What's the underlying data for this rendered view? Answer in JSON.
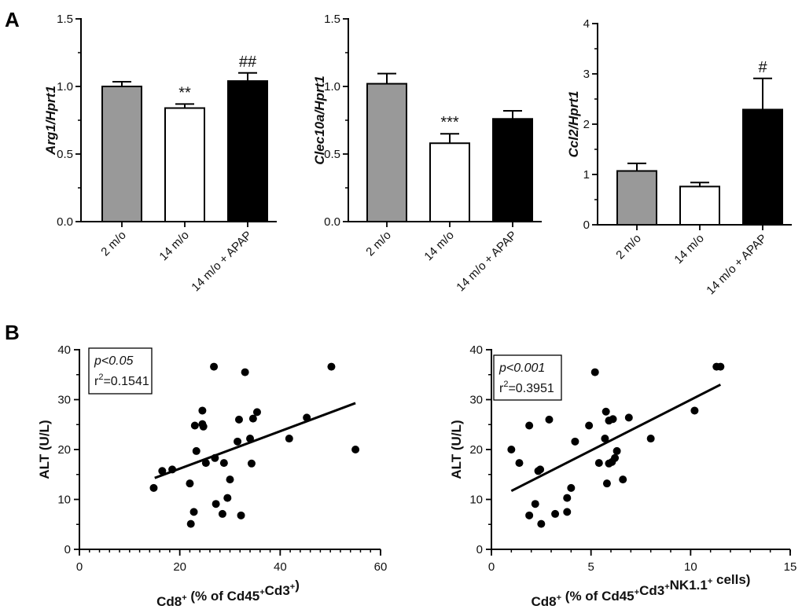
{
  "panels": {
    "a": "A",
    "b": "B"
  },
  "chart_data": [
    {
      "type": "bar",
      "ylabel": "Arg1/Hprt1",
      "categories": [
        "2 m/o",
        "14 m/o",
        "14 m/o + APAP"
      ],
      "values": [
        1.0,
        0.84,
        1.04
      ],
      "errors": [
        0.035,
        0.03,
        0.06
      ],
      "significance": [
        "",
        "**",
        "##"
      ],
      "fills": [
        "#999999",
        "#ffffff",
        "#000000"
      ],
      "ylim": [
        0,
        1.5
      ],
      "yticks": [
        "0.0",
        "0.5",
        "1.0",
        "1.5"
      ]
    },
    {
      "type": "bar",
      "ylabel": "Clec10a/Hprt1",
      "categories": [
        "2 m/o",
        "14 m/o",
        "14 m/o + APAP"
      ],
      "values": [
        1.02,
        0.58,
        0.76
      ],
      "errors": [
        0.075,
        0.07,
        0.06
      ],
      "significance": [
        "",
        "***",
        ""
      ],
      "fills": [
        "#999999",
        "#ffffff",
        "#000000"
      ],
      "ylim": [
        0,
        1.5
      ],
      "yticks": [
        "0.0",
        "0.5",
        "1.0",
        "1.5"
      ]
    },
    {
      "type": "bar",
      "ylabel": "Ccl2/Hprt1",
      "categories": [
        "2 m/o",
        "14 m/o",
        "14 m/o + APAP"
      ],
      "values": [
        1.07,
        0.76,
        2.29
      ],
      "errors": [
        0.15,
        0.08,
        0.62
      ],
      "significance": [
        "",
        "",
        "#"
      ],
      "fills": [
        "#999999",
        "#ffffff",
        "#000000"
      ],
      "ylim": [
        0,
        4
      ],
      "yticks": [
        "0",
        "1",
        "2",
        "3",
        "4"
      ]
    },
    {
      "type": "scatter",
      "ylabel": "ALT (U/L)",
      "xlabel_main": "Cd8",
      "xlabel_rest": " (% of Cd45",
      "xlabel_mid": "Cd3",
      "xlabel_end": ")",
      "p_text": "p<0.05",
      "r2_value": "=0.1541",
      "xlim": [
        0,
        60
      ],
      "ylim": [
        0,
        40
      ],
      "xticks": [
        "0",
        "20",
        "40",
        "60"
      ],
      "yticks": [
        "0",
        "10",
        "20",
        "30",
        "40"
      ],
      "fit": {
        "x": [
          15,
          55
        ],
        "y": [
          14.3,
          29.3
        ]
      },
      "points": [
        {
          "x": 14.8,
          "y": 12.3
        },
        {
          "x": 16.5,
          "y": 15.7
        },
        {
          "x": 18.5,
          "y": 16.0
        },
        {
          "x": 22.0,
          "y": 13.2
        },
        {
          "x": 22.2,
          "y": 5.1
        },
        {
          "x": 22.8,
          "y": 7.5
        },
        {
          "x": 23.0,
          "y": 24.8
        },
        {
          "x": 23.3,
          "y": 19.7
        },
        {
          "x": 24.5,
          "y": 27.8
        },
        {
          "x": 24.5,
          "y": 25.1
        },
        {
          "x": 24.7,
          "y": 24.6
        },
        {
          "x": 25.2,
          "y": 17.3
        },
        {
          "x": 26.8,
          "y": 36.6
        },
        {
          "x": 27.0,
          "y": 18.3
        },
        {
          "x": 27.2,
          "y": 9.1
        },
        {
          "x": 28.5,
          "y": 7.1
        },
        {
          "x": 28.8,
          "y": 17.3
        },
        {
          "x": 29.5,
          "y": 10.3
        },
        {
          "x": 30.0,
          "y": 14.0
        },
        {
          "x": 31.5,
          "y": 21.6
        },
        {
          "x": 31.8,
          "y": 26.0
        },
        {
          "x": 32.2,
          "y": 6.8
        },
        {
          "x": 33.0,
          "y": 35.5
        },
        {
          "x": 34.0,
          "y": 22.2
        },
        {
          "x": 34.3,
          "y": 17.2
        },
        {
          "x": 34.6,
          "y": 26.2
        },
        {
          "x": 35.4,
          "y": 27.5
        },
        {
          "x": 41.8,
          "y": 22.2
        },
        {
          "x": 45.3,
          "y": 26.4
        },
        {
          "x": 50.2,
          "y": 36.6
        },
        {
          "x": 55.0,
          "y": 20.0
        }
      ]
    },
    {
      "type": "scatter",
      "ylabel": "ALT (U/L)",
      "xlabel_main": "Cd8",
      "xlabel_rest": " (% of Cd45",
      "xlabel_mid": "Cd3",
      "xlabel_mid2": "NK1.1",
      "xlabel_end": " cells)",
      "p_text": "p<0.001",
      "r2_value": "=0.3951",
      "xlim": [
        0,
        15
      ],
      "ylim": [
        0,
        40
      ],
      "xticks": [
        "0",
        "5",
        "10",
        "15"
      ],
      "yticks": [
        "0",
        "10",
        "20",
        "30",
        "40"
      ],
      "fit": {
        "x": [
          1.0,
          11.5
        ],
        "y": [
          11.7,
          33.0
        ]
      },
      "points": [
        {
          "x": 1.0,
          "y": 20.0
        },
        {
          "x": 1.4,
          "y": 17.3
        },
        {
          "x": 1.9,
          "y": 24.8
        },
        {
          "x": 1.9,
          "y": 6.8
        },
        {
          "x": 2.2,
          "y": 9.1
        },
        {
          "x": 2.35,
          "y": 15.7
        },
        {
          "x": 2.45,
          "y": 16.0
        },
        {
          "x": 2.5,
          "y": 5.1
        },
        {
          "x": 2.9,
          "y": 26.0
        },
        {
          "x": 3.2,
          "y": 7.1
        },
        {
          "x": 3.8,
          "y": 7.5
        },
        {
          "x": 3.8,
          "y": 10.3
        },
        {
          "x": 4.0,
          "y": 12.3
        },
        {
          "x": 4.2,
          "y": 21.6
        },
        {
          "x": 4.9,
          "y": 24.8
        },
        {
          "x": 5.2,
          "y": 35.5
        },
        {
          "x": 5.4,
          "y": 17.3
        },
        {
          "x": 5.7,
          "y": 22.2
        },
        {
          "x": 5.75,
          "y": 27.6
        },
        {
          "x": 5.8,
          "y": 13.2
        },
        {
          "x": 5.9,
          "y": 17.2
        },
        {
          "x": 5.9,
          "y": 25.8
        },
        {
          "x": 6.05,
          "y": 17.5
        },
        {
          "x": 6.1,
          "y": 26.1
        },
        {
          "x": 6.2,
          "y": 18.3
        },
        {
          "x": 6.3,
          "y": 19.7
        },
        {
          "x": 6.6,
          "y": 14.0
        },
        {
          "x": 6.9,
          "y": 26.4
        },
        {
          "x": 8.0,
          "y": 22.2
        },
        {
          "x": 10.2,
          "y": 27.8
        },
        {
          "x": 11.3,
          "y": 36.6
        },
        {
          "x": 11.5,
          "y": 36.6
        }
      ]
    }
  ]
}
